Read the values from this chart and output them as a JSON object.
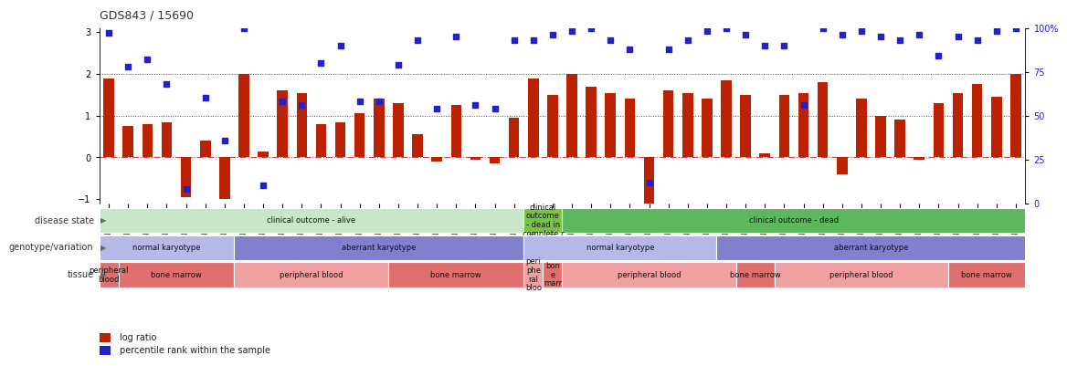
{
  "title": "GDS843 / 15690",
  "samples": [
    "GSM6299",
    "GSM6331",
    "GSM6308",
    "GSM6325",
    "GSM6335",
    "GSM6336",
    "GSM6342",
    "GSM6300",
    "GSM6301",
    "GSM6317",
    "GSM6321",
    "GSM6323",
    "GSM6326",
    "GSM6333",
    "GSM6337",
    "GSM6302",
    "GSM6304",
    "GSM6312",
    "GSM6327",
    "GSM6328",
    "GSM6329",
    "GSM6343",
    "GSM6305",
    "GSM6298",
    "GSM6306",
    "GSM6310",
    "GSM6315",
    "GSM6332",
    "GSM6341",
    "GSM6307",
    "GSM6314",
    "GSM6338",
    "GSM6303",
    "GSM6309",
    "GSM6311",
    "GSM6319",
    "GSM6320",
    "GSM6324",
    "GSM6330",
    "GSM6334",
    "GSM6340",
    "GSM6344",
    "GSM6345",
    "GSM6316",
    "GSM6318",
    "GSM6322",
    "GSM6339",
    "GSM6346"
  ],
  "log_ratio": [
    1.9,
    0.75,
    0.8,
    0.85,
    -0.95,
    0.4,
    -1.0,
    2.0,
    0.15,
    1.6,
    1.55,
    0.8,
    0.85,
    1.05,
    1.4,
    1.3,
    0.55,
    -0.1,
    1.25,
    -0.05,
    -0.15,
    0.95,
    1.9,
    1.5,
    2.0,
    1.7,
    1.55,
    1.4,
    -1.35,
    1.6,
    1.55,
    1.4,
    1.85,
    1.5,
    0.1,
    1.5,
    1.55,
    1.8,
    -0.4,
    1.4,
    1.0,
    0.9,
    -0.05,
    1.3,
    1.55,
    1.75,
    1.45,
    2.0
  ],
  "percentile_pct": [
    97,
    78,
    82,
    68,
    8,
    60,
    36,
    100,
    10,
    58,
    56,
    80,
    90,
    58,
    58,
    79,
    93,
    54,
    95,
    56,
    54,
    93,
    93,
    96,
    98,
    100,
    93,
    88,
    12,
    88,
    93,
    98,
    100,
    96,
    90,
    90,
    56,
    100,
    96,
    98,
    95,
    93,
    96,
    84,
    95,
    93,
    98,
    100
  ],
  "disease_state_blocks": [
    {
      "label": "clinical outcome - alive",
      "start": 0,
      "end": 22,
      "color": "#c8e6c8"
    },
    {
      "label": "clinical\noutcome\n- dead in\ncomplete r",
      "start": 22,
      "end": 24,
      "color": "#76c442"
    },
    {
      "label": "clinical outcome - dead",
      "start": 24,
      "end": 48,
      "color": "#5cb85c"
    }
  ],
  "genotype_blocks": [
    {
      "label": "normal karyotype",
      "start": 0,
      "end": 7,
      "color": "#b8b8e8"
    },
    {
      "label": "aberrant karyotype",
      "start": 7,
      "end": 22,
      "color": "#8080cc"
    },
    {
      "label": "normal karyotype",
      "start": 22,
      "end": 32,
      "color": "#b8b8e8"
    },
    {
      "label": "aberrant karyotype",
      "start": 32,
      "end": 48,
      "color": "#8080cc"
    }
  ],
  "tissue_blocks": [
    {
      "label": "peripheral\nblood",
      "start": 0,
      "end": 1,
      "color": "#e07070"
    },
    {
      "label": "bone marrow",
      "start": 1,
      "end": 7,
      "color": "#e07070"
    },
    {
      "label": "peripheral blood",
      "start": 7,
      "end": 15,
      "color": "#f0a0a0"
    },
    {
      "label": "bone marrow",
      "start": 15,
      "end": 22,
      "color": "#e07070"
    },
    {
      "label": "peri\nphe\nral\nbloo",
      "start": 22,
      "end": 23,
      "color": "#f0a0a0"
    },
    {
      "label": "bon\ne\nmarr",
      "start": 23,
      "end": 24,
      "color": "#e07070"
    },
    {
      "label": "peripheral blood",
      "start": 24,
      "end": 33,
      "color": "#f0a0a0"
    },
    {
      "label": "bone marrow",
      "start": 33,
      "end": 35,
      "color": "#e07070"
    },
    {
      "label": "peripheral blood",
      "start": 35,
      "end": 44,
      "color": "#f0a0a0"
    },
    {
      "label": "bone marrow",
      "start": 44,
      "end": 48,
      "color": "#e07070"
    }
  ],
  "bar_color": "#bb2200",
  "dot_color": "#2222cc",
  "ylim_left": [
    -1.1,
    3.1
  ],
  "ylim_right": [
    0,
    100
  ],
  "yticks_left": [
    -1,
    0,
    1,
    2,
    3
  ],
  "yticks_right": [
    0,
    25,
    50,
    75,
    100
  ],
  "background_color": "#ffffff",
  "row_labels": [
    "disease state",
    "genotype/variation",
    "tissue"
  ],
  "legend_items": [
    {
      "color": "#bb2200",
      "label": "log ratio"
    },
    {
      "color": "#2222cc",
      "label": "percentile rank within the sample"
    }
  ]
}
